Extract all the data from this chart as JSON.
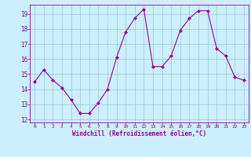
{
  "x": [
    0,
    1,
    2,
    3,
    4,
    5,
    6,
    7,
    8,
    9,
    10,
    11,
    12,
    13,
    14,
    15,
    16,
    17,
    18,
    19,
    20,
    21,
    22,
    23
  ],
  "y": [
    14.5,
    15.3,
    14.6,
    14.1,
    13.3,
    12.4,
    12.4,
    13.1,
    14.0,
    16.1,
    17.8,
    18.7,
    19.3,
    15.5,
    15.5,
    16.2,
    17.9,
    18.7,
    19.2,
    19.2,
    16.7,
    16.2,
    14.8,
    14.6
  ],
  "line_color": "#990099",
  "marker": "D",
  "marker_size": 2,
  "bg_color": "#cceeff",
  "grid_color": "#99cccc",
  "xlabel": "Windchill (Refroidissement éolien,°C)",
  "xlabel_color": "#990099",
  "tick_color": "#990099",
  "ylim": [
    11.8,
    19.6
  ],
  "xlim": [
    -0.5,
    23.5
  ],
  "yticks": [
    12,
    13,
    14,
    15,
    16,
    17,
    18,
    19
  ],
  "xticks": [
    0,
    1,
    2,
    3,
    4,
    5,
    6,
    7,
    8,
    9,
    10,
    11,
    12,
    13,
    14,
    15,
    16,
    17,
    18,
    19,
    20,
    21,
    22,
    23
  ]
}
